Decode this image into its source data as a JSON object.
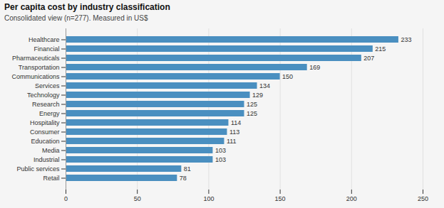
{
  "chart_data": {
    "type": "bar",
    "orientation": "horizontal",
    "title": "Per capita cost by industry classification",
    "subtitle": "Consolidated view (n=277). Measured in US$",
    "categories": [
      "Retail",
      "Public services",
      "Industrial",
      "Media",
      "Education",
      "Consumer",
      "Hospitality",
      "Energy",
      "Research",
      "Technology",
      "Services",
      "Communications",
      "Transportation",
      "Pharmaceuticals",
      "Financial",
      "Healthcare"
    ],
    "values": [
      78,
      81,
      103,
      103,
      111,
      113,
      114,
      125,
      125,
      129,
      134,
      150,
      169,
      207,
      215,
      233
    ],
    "color": "#4a8fc0",
    "xlim": [
      0,
      250
    ],
    "xticks": [
      0,
      50,
      100,
      150,
      200,
      250
    ],
    "grid": true,
    "data_labels": true
  }
}
